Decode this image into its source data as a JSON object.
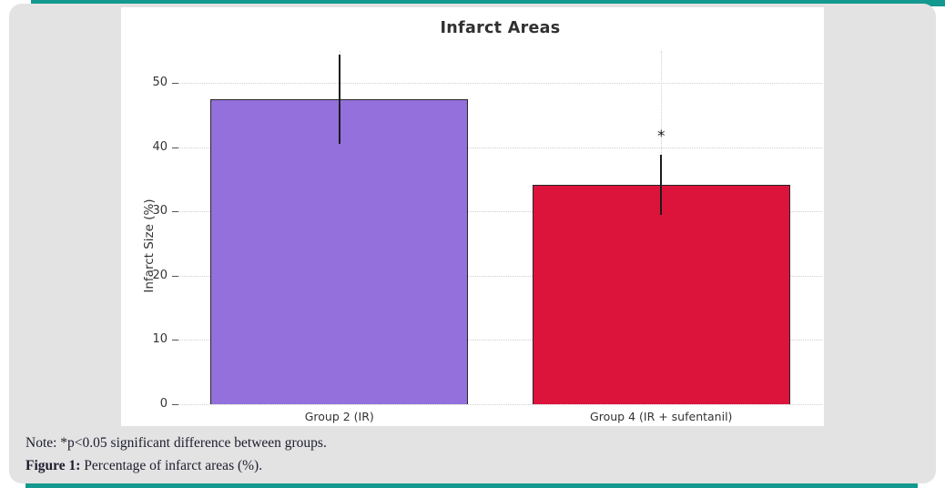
{
  "figure": {
    "accent_teal": "#13998f",
    "frame_bg": "#e3e3e3",
    "panel_bg": "#ffffff"
  },
  "caption": {
    "note": "Note: *p<0.05 significant difference between groups.",
    "figure_label": "Figure 1:",
    "figure_text": " Percentage of infarct areas (%)."
  },
  "chart_data": {
    "type": "bar",
    "title": "Infarct Areas",
    "xlabel": "",
    "ylabel": "Infarct Size (%)",
    "categories": [
      "Group 2 (IR)",
      "Group 4 (IR + sufentanil)"
    ],
    "values": [
      47.5,
      34.2
    ],
    "errors": [
      6.9,
      4.7
    ],
    "bar_colors": [
      "#9370DB",
      "#DC143C"
    ],
    "bar_edge_color": "#262626",
    "significance_labels": [
      "",
      "*"
    ],
    "ylim": [
      0,
      55
    ],
    "yticks": [
      0,
      10,
      20,
      30,
      40,
      50
    ],
    "grid": {
      "style": "dotted",
      "color": "#cfcfcf",
      "horizontal": true,
      "vertical": true
    },
    "legend": null
  }
}
